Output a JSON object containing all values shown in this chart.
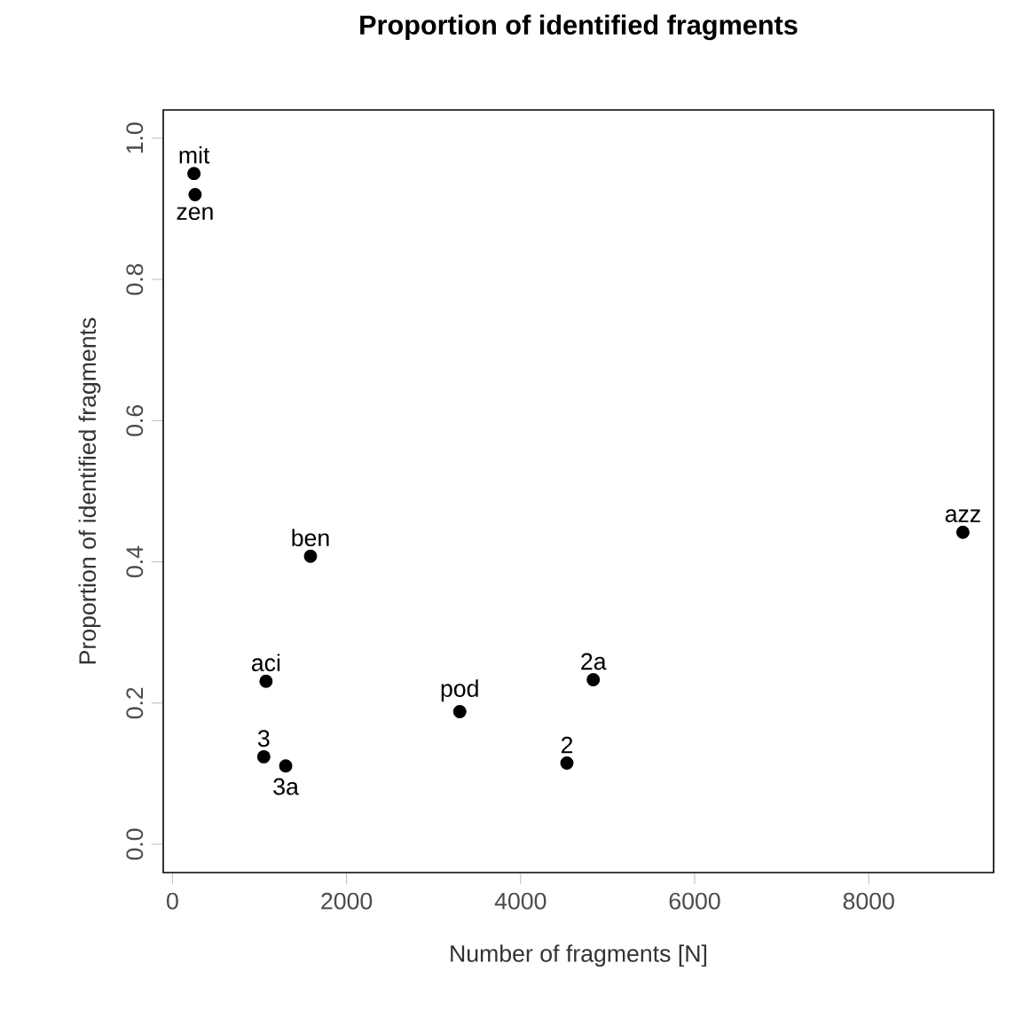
{
  "chart_data": {
    "type": "scatter",
    "title": "Proportion of identified fragments",
    "xlabel": "Number of fragments [N]",
    "ylabel": "Proportion of identified fragments",
    "xlim": [
      -106,
      9435
    ],
    "ylim": [
      -0.04,
      1.04
    ],
    "xticks": [
      0,
      2000,
      4000,
      6000,
      8000
    ],
    "yticks": [
      {
        "value": 0,
        "label": "0.0"
      },
      0.2,
      0.4,
      0.6,
      0.8,
      {
        "value": 1,
        "label": "1.0"
      }
    ],
    "x": [
      247,
      260,
      1586,
      1075,
      1049,
      1301,
      3301,
      4835,
      4532,
      9082
    ],
    "series": [
      {
        "color": "#000000",
        "values": [
          0.95,
          0.92,
          0.408,
          0.231,
          0.124,
          0.111,
          0.188,
          0.233,
          0.115,
          0.442
        ]
      }
    ],
    "marker": "circle",
    "grid": false,
    "annotations": [
      {
        "text": "mit",
        "x": 247,
        "y": 0.95
      },
      {
        "text": "zen",
        "x": 260,
        "y": 0.92
      },
      {
        "text": "ben",
        "x": 1586,
        "y": 0.408
      },
      {
        "text": "aci",
        "x": 1075,
        "y": 0.231
      },
      {
        "text": "3",
        "x": 1049,
        "y": 0.124
      },
      {
        "text": "3a",
        "x": 1301,
        "y": 0.111
      },
      {
        "text": "pod",
        "x": 3301,
        "y": 0.188
      },
      {
        "text": "2a",
        "x": 4835,
        "y": 0.233
      },
      {
        "text": "2",
        "x": 4532,
        "y": 0.115
      },
      {
        "text": "azz",
        "x": 9082,
        "y": 0.442
      }
    ]
  }
}
